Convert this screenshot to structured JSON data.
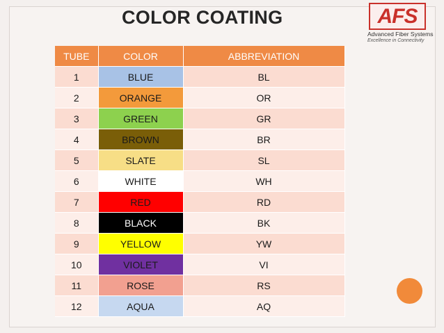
{
  "title": "COLOR COATING",
  "logo": {
    "mark": "AFS",
    "name": "Advanced Fiber Systems",
    "tagline": "Excellence in Connectivity",
    "color": "#c9302a"
  },
  "table": {
    "headers": [
      "TUBE",
      "COLOR",
      "ABBREVIATION"
    ],
    "rows": [
      {
        "tube": "1",
        "color": "BLUE",
        "abbr": "BL",
        "swatch": "#a8c2e6",
        "text_color": "#1a1a1a"
      },
      {
        "tube": "2",
        "color": "ORANGE",
        "abbr": "OR",
        "swatch": "#f39a3b",
        "text_color": "#1a1a1a"
      },
      {
        "tube": "3",
        "color": "GREEN",
        "abbr": "GR",
        "swatch": "#8dd14e",
        "text_color": "#1a1a1a"
      },
      {
        "tube": "4",
        "color": "BROWN",
        "abbr": "BR",
        "swatch": "#7a5e08",
        "text_color": "#1a1a1a"
      },
      {
        "tube": "5",
        "color": "SLATE",
        "abbr": "SL",
        "swatch": "#f7de86",
        "text_color": "#1a1a1a"
      },
      {
        "tube": "6",
        "color": "WHITE",
        "abbr": "WH",
        "swatch": "#ffffff",
        "text_color": "#1a1a1a"
      },
      {
        "tube": "7",
        "color": "RED",
        "abbr": "RD",
        "swatch": "#ff0000",
        "text_color": "#1a1a1a"
      },
      {
        "tube": "8",
        "color": "BLACK",
        "abbr": "BK",
        "swatch": "#000000",
        "text_color": "#ffffff"
      },
      {
        "tube": "9",
        "color": "YELLOW",
        "abbr": "YW",
        "swatch": "#ffff00",
        "text_color": "#1a1a1a"
      },
      {
        "tube": "10",
        "color": "VIOLET",
        "abbr": "VI",
        "swatch": "#7030a0",
        "text_color": "#1a1a1a"
      },
      {
        "tube": "11",
        "color": "ROSE",
        "abbr": "RS",
        "swatch": "#f2a090",
        "text_color": "#1a1a1a"
      },
      {
        "tube": "12",
        "color": "AQUA",
        "abbr": "AQ",
        "swatch": "#c6d8f0",
        "text_color": "#1a1a1a"
      }
    ]
  },
  "colors": {
    "header_bg": "#ef8a45",
    "accent_circle": "#f18a3a"
  }
}
